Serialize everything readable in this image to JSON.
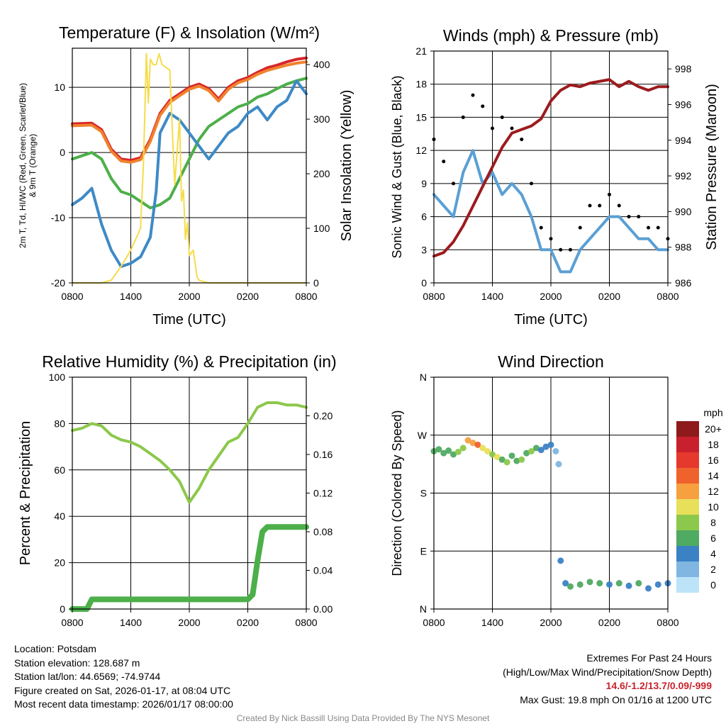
{
  "chart_data": [
    {
      "type": "line",
      "title": "Temperature (F) & Insolation (W/m²)",
      "xlabel": "Time (UTC)",
      "ylabel": "2m T, Td, HI/WC (Red, Green, Scarlet/Blue) & 9m T (Orange)",
      "y2label": "Solar Insolation (Yellow)",
      "xlim": [
        0,
        24
      ],
      "ylim": [
        -20,
        16
      ],
      "y2lim": [
        0,
        430
      ],
      "xticks": [
        0,
        6,
        12,
        18,
        24
      ],
      "xticklabels": [
        "0800",
        "1400",
        "2000",
        "0200",
        "0800"
      ],
      "yticks": [
        -20,
        -10,
        0,
        10
      ],
      "y2ticks": [
        0,
        100,
        200,
        300,
        400
      ],
      "series": [
        {
          "name": "2m T",
          "color": "#d7262b",
          "axis": "left",
          "x": [
            0,
            2,
            3,
            4,
            5,
            6,
            7,
            8,
            9,
            10,
            11,
            12,
            13,
            14,
            15,
            16,
            17,
            18,
            19,
            20,
            21,
            22,
            23,
            24
          ],
          "y": [
            4.4,
            4.5,
            3.5,
            0.5,
            -1,
            -1.2,
            -0.8,
            2,
            6,
            8,
            9,
            10,
            10.5,
            9.8,
            8.2,
            10,
            11,
            11.5,
            12.3,
            13,
            13.4,
            13.9,
            14.3,
            14.5
          ]
        },
        {
          "name": "9m T",
          "color": "#f0822d",
          "axis": "left",
          "x": [
            0,
            2,
            3,
            4,
            5,
            6,
            7,
            8,
            9,
            10,
            11,
            12,
            13,
            14,
            15,
            16,
            17,
            18,
            19,
            20,
            21,
            22,
            23,
            24
          ],
          "y": [
            4.1,
            4.2,
            3.2,
            0.2,
            -1.3,
            -1.5,
            -1.1,
            1.7,
            5.7,
            7.7,
            8.7,
            9.7,
            10.2,
            9.5,
            7.9,
            9.7,
            10.7,
            11.2,
            12,
            12.6,
            13,
            13.4,
            13.7,
            13.9
          ]
        },
        {
          "name": "Td",
          "color": "#4daf4a",
          "axis": "left",
          "x": [
            0,
            1,
            2,
            3,
            4,
            5,
            6,
            7,
            8,
            9,
            10,
            11,
            12,
            13,
            14,
            15,
            16,
            17,
            18,
            19,
            20,
            21,
            22,
            23,
            24
          ],
          "y": [
            -1,
            -0.5,
            0,
            -1,
            -4,
            -6,
            -6.5,
            -7.5,
            -8.5,
            -8,
            -7,
            -4,
            -1,
            2,
            4,
            5,
            6,
            7,
            7.5,
            8.5,
            9,
            9.8,
            10.5,
            11,
            11.4
          ]
        },
        {
          "name": "HI/WC",
          "color": "#3e8ac6",
          "axis": "left",
          "x": [
            0,
            1,
            2,
            3,
            4,
            5,
            6,
            7,
            8,
            8.6,
            9,
            10,
            11,
            12,
            13,
            14,
            15,
            16,
            17,
            18,
            19,
            20,
            21,
            22,
            23,
            24
          ],
          "y": [
            -8,
            -7,
            -5.5,
            -11,
            -15,
            -17.5,
            -17,
            -16,
            -13,
            -6,
            3,
            6,
            5,
            3,
            1,
            -1,
            1,
            3,
            4,
            6,
            7,
            5,
            7,
            8,
            11,
            9
          ]
        },
        {
          "name": "Solar Insolation",
          "color": "#f6dc4b",
          "axis": "right",
          "x": [
            0,
            3,
            4,
            5,
            6,
            7,
            7.3,
            7.6,
            7.8,
            8,
            8.3,
            8.6,
            8.9,
            9.2,
            10,
            10.5,
            11,
            11.2,
            11.4,
            11.6,
            11.8,
            12,
            12.4,
            12.8,
            13,
            13.5,
            14,
            24
          ],
          "y": [
            0,
            0,
            5,
            30,
            60,
            100,
            220,
            420,
            330,
            410,
            400,
            400,
            420,
            400,
            390,
            180,
            300,
            150,
            170,
            80,
            110,
            50,
            60,
            10,
            5,
            2,
            0,
            0
          ]
        }
      ]
    },
    {
      "type": "line",
      "title": "Winds (mph) & Pressure (mb)",
      "xlabel": "Time (UTC)",
      "ylabel": "Sonic Wind & Gust (Blue, Black)",
      "y2label": "Station Pressure (Maroon)",
      "xlim": [
        0,
        24
      ],
      "ylim": [
        0,
        21
      ],
      "y2lim": [
        986,
        999
      ],
      "xticks": [
        0,
        6,
        12,
        18,
        24
      ],
      "xticklabels": [
        "0800",
        "1400",
        "2000",
        "0200",
        "0800"
      ],
      "yticks": [
        0,
        3,
        6,
        9,
        12,
        15,
        18,
        21
      ],
      "y2ticks": [
        986,
        988,
        990,
        992,
        994,
        996,
        998
      ],
      "series": [
        {
          "name": "Sonic Wind",
          "color": "#5a9fd4",
          "axis": "left",
          "x": [
            0,
            1,
            2,
            3,
            4,
            5,
            6,
            7,
            8,
            9,
            10,
            11,
            12,
            13,
            14,
            15,
            16,
            17,
            18,
            19,
            20,
            21,
            22,
            23,
            24
          ],
          "y": [
            8,
            7,
            6,
            10,
            12,
            9,
            10,
            8,
            9,
            8,
            6,
            3,
            3,
            1,
            1,
            3,
            4,
            5,
            6,
            6,
            5,
            4,
            4,
            3,
            3
          ]
        },
        {
          "name": "Gust",
          "color": "#000000",
          "axis": "left",
          "x": [
            0,
            1,
            2,
            3,
            4,
            5,
            6,
            7,
            8,
            9,
            10,
            11,
            12,
            13,
            14,
            15,
            16,
            17,
            18,
            19,
            20,
            21,
            22,
            23,
            24
          ],
          "y": [
            13,
            11,
            9,
            15,
            17,
            16,
            14,
            15,
            14,
            13,
            9,
            5,
            4,
            3,
            3,
            5,
            7,
            7,
            8,
            7,
            6,
            6,
            5,
            5,
            4
          ]
        },
        {
          "name": "Station Pressure",
          "color": "#9c1b1e",
          "axis": "right",
          "x": [
            0,
            1,
            2,
            3,
            4,
            5,
            6,
            7,
            8,
            9,
            10,
            11,
            12,
            13,
            14,
            15,
            16,
            17,
            18,
            19,
            20,
            21,
            22,
            23,
            24
          ],
          "y": [
            987.5,
            987.7,
            988.3,
            989.2,
            990.3,
            991.4,
            992.5,
            993.6,
            994.4,
            994.6,
            994.8,
            995.2,
            996.2,
            996.8,
            997.1,
            997.0,
            997.2,
            997.3,
            997.4,
            997.0,
            997.3,
            997.0,
            996.8,
            997.0,
            997.0
          ]
        }
      ]
    },
    {
      "type": "line",
      "title": "Relative Humidity (%) & Precipitation (in)",
      "xlabel": "",
      "ylabel": "Percent & Precipitation",
      "xlim": [
        0,
        24
      ],
      "ylim": [
        0,
        100
      ],
      "y2lim": [
        0,
        0.24
      ],
      "xticks": [
        0,
        6,
        12,
        18,
        24
      ],
      "xticklabels": [
        "0800",
        "1400",
        "2000",
        "0200",
        "0800"
      ],
      "yticks": [
        0,
        20,
        40,
        60,
        80,
        100
      ],
      "y2ticks": [
        0.0,
        0.04,
        0.08,
        0.12,
        0.16,
        0.2
      ],
      "y2ticklabels": [
        "0.00",
        "0.04",
        "0.08",
        "0.12",
        "0.16",
        "0.20"
      ],
      "series": [
        {
          "name": "Relative Humidity",
          "color": "#8cc84b",
          "axis": "left",
          "x": [
            0,
            1,
            2,
            3,
            4,
            5,
            6,
            7,
            8,
            9,
            10,
            11,
            12,
            13,
            14,
            15,
            16,
            17,
            18,
            19,
            20,
            21,
            22,
            23,
            24
          ],
          "y": [
            77,
            78,
            80,
            79,
            75,
            73,
            72,
            70,
            67,
            64,
            60,
            55,
            46,
            52,
            60,
            66,
            72,
            74,
            80,
            87,
            89,
            89,
            88,
            88,
            87
          ]
        },
        {
          "name": "Precipitation",
          "color": "#4daf4a",
          "axis": "right",
          "x": [
            0,
            1.5,
            2,
            18,
            18.5,
            19,
            19.5,
            20,
            21,
            22,
            23,
            24
          ],
          "y": [
            0,
            0,
            0.01,
            0.01,
            0.015,
            0.05,
            0.08,
            0.085,
            0.085,
            0.085,
            0.085,
            0.085
          ]
        }
      ]
    },
    {
      "type": "scatter",
      "title": "Wind Direction",
      "xlabel": "",
      "ylabel": "Direction (Colored By Speed)",
      "xlim": [
        0,
        24
      ],
      "ylim": [
        0,
        360
      ],
      "xticks": [
        0,
        6,
        12,
        18,
        24
      ],
      "xticklabels": [
        "0800",
        "1400",
        "2000",
        "0200",
        "0800"
      ],
      "yticks": [
        0,
        90,
        180,
        270,
        360
      ],
      "yticklabels": [
        "N",
        "E",
        "S",
        "W",
        "N"
      ],
      "colorbar": {
        "title": "mph",
        "labels": [
          "20+",
          "18",
          "16",
          "14",
          "12",
          "10",
          "8",
          "6",
          "4",
          "2",
          "0"
        ],
        "colors": [
          "#8e1a1c",
          "#c8202c",
          "#e5392d",
          "#f0622b",
          "#f6a040",
          "#e8e05a",
          "#8cc84b",
          "#4faa62",
          "#3b82c4",
          "#7fb6e2",
          "#bde3f8"
        ]
      },
      "points": [
        [
          0,
          245,
          6
        ],
        [
          0.5,
          248,
          6
        ],
        [
          1,
          242,
          6
        ],
        [
          1.5,
          246,
          5
        ],
        [
          2,
          240,
          6
        ],
        [
          2.5,
          244,
          7
        ],
        [
          3,
          250,
          8
        ],
        [
          3.5,
          262,
          12
        ],
        [
          4,
          258,
          12
        ],
        [
          4.5,
          255,
          13
        ],
        [
          5,
          250,
          10
        ],
        [
          5.5,
          245,
          9
        ],
        [
          6,
          240,
          8
        ],
        [
          6.5,
          236,
          10
        ],
        [
          7,
          232,
          6
        ],
        [
          7.5,
          228,
          8
        ],
        [
          8,
          238,
          6
        ],
        [
          8.5,
          230,
          6
        ],
        [
          9,
          232,
          8
        ],
        [
          9.5,
          242,
          6
        ],
        [
          10,
          245,
          7
        ],
        [
          10.5,
          250,
          5
        ],
        [
          11,
          247,
          4
        ],
        [
          11.5,
          252,
          4
        ],
        [
          12,
          255,
          3
        ],
        [
          12.5,
          245,
          2
        ],
        [
          12.8,
          225,
          1
        ],
        [
          13,
          75,
          3
        ],
        [
          13.5,
          40,
          3
        ],
        [
          14,
          35,
          5
        ],
        [
          15,
          38,
          6
        ],
        [
          16,
          42,
          5
        ],
        [
          17,
          40,
          6
        ],
        [
          18,
          38,
          4
        ],
        [
          19,
          40,
          5
        ],
        [
          20,
          36,
          4
        ],
        [
          21,
          40,
          5
        ],
        [
          22,
          32,
          4
        ],
        [
          23,
          38,
          3
        ],
        [
          24,
          40,
          3
        ]
      ]
    }
  ],
  "info": {
    "location": "Location: Potsdam",
    "elevation": "Station elevation: 128.687 m",
    "latlon": "Station lat/lon: 44.6569; -74.9744",
    "created": "Figure created on Sat, 2026-01-17, at 08:04 UTC",
    "recent": "Most recent data timestamp: 2026/01/17 08:00:00"
  },
  "extremes": {
    "title": "Extremes For Past 24 Hours",
    "subtitle": "(High/Low/Max Wind/Precipitation/Snow Depth)",
    "values": "14.6/-1.2/13.7/0.09/-999",
    "gust": "Max Gust: 19.8 mph On 01/16 at 1200 UTC"
  },
  "credit": "Created By Nick Bassill Using Data Provided By The NYS Mesonet"
}
